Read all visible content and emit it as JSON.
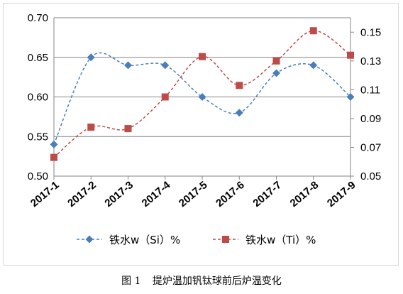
{
  "chart_data": {
    "type": "line",
    "categories": [
      "2017-1",
      "2017-2",
      "2017-3",
      "2017-4",
      "2017-5",
      "2017-6",
      "2017-7",
      "2017-8",
      "2017-9"
    ],
    "series": [
      {
        "name": "铁水w（Si）%",
        "axis": "left",
        "color": "#4a7ebb",
        "marker": "diamond",
        "line": "dashed",
        "values": [
          0.54,
          0.65,
          0.64,
          0.64,
          0.6,
          0.58,
          0.63,
          0.64,
          0.6
        ]
      },
      {
        "name": "铁水w（Ti）%",
        "axis": "right",
        "color": "#be4b48",
        "marker": "square",
        "line": "dashed",
        "values": [
          0.063,
          0.084,
          0.083,
          0.105,
          0.133,
          0.113,
          0.13,
          0.151,
          0.134
        ]
      }
    ],
    "y_left": {
      "lim": [
        0.5,
        0.7
      ],
      "ticks": [
        "0.50",
        "0.55",
        "0.60",
        "0.65",
        "0.70"
      ]
    },
    "y_right": {
      "lim": [
        0.05,
        0.16
      ],
      "ticks": [
        "0.05",
        "0.07",
        "0.09",
        "0.11",
        "0.13",
        "0.15"
      ]
    },
    "grid": true,
    "legend": "bottom"
  },
  "caption": {
    "label": "图 1",
    "text": "提炉温加钒钛球前后炉温变化"
  }
}
